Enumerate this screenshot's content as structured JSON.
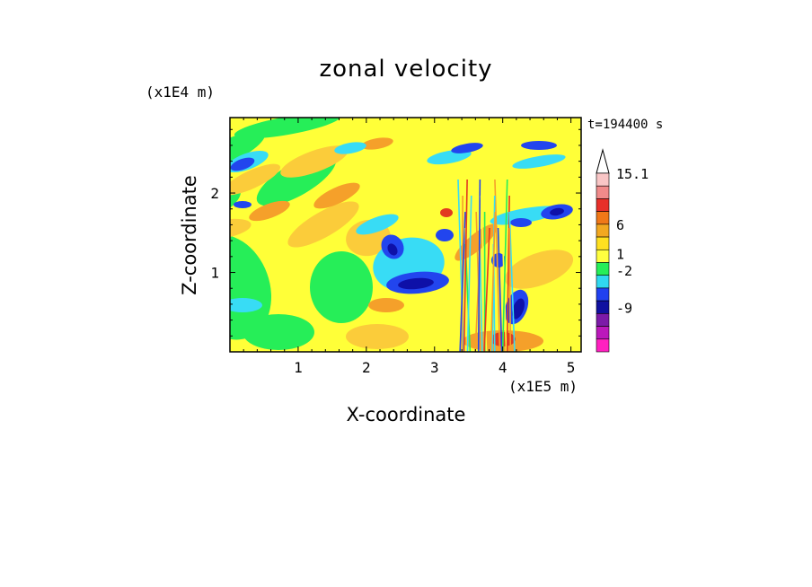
{
  "chart_data": {
    "type": "heatmap",
    "title": "zonal velocity",
    "time_label": "t=194400 s",
    "xlabel": "X-coordinate",
    "ylabel": "Z-coordinate",
    "x_unit": "(x1E5 m)",
    "y_unit": "(x1E4 m)",
    "xlim": [
      0,
      5.15
    ],
    "ylim": [
      0,
      2.95
    ],
    "x_ticks": [
      "1",
      "2",
      "3",
      "4",
      "5"
    ],
    "y_ticks": [
      "1",
      "2"
    ],
    "colorbar": {
      "labels": [
        "15.1",
        "6",
        "1",
        "-2",
        "-9"
      ],
      "colors": [
        "#f9c6c6",
        "#f08a8a",
        "#e8302a",
        "#f07818",
        "#f2a820",
        "#ffe020",
        "#ffff40",
        "#26ee58",
        "#30d8f0",
        "#2040f0",
        "#1010a0",
        "#7c1aa8",
        "#bb18bb",
        "#ff20c0"
      ]
    },
    "palette": {
      "yellow": "#ffff38",
      "yellow_light": "#ffff60",
      "orange_light": "#fbcc3a",
      "orange": "#f5a02a",
      "orange_deep": "#f07018",
      "red": "#e23a20",
      "green": "#26ee58",
      "cyan": "#38dcf5",
      "blue": "#2245ee",
      "navy": "#0e10a8"
    }
  }
}
